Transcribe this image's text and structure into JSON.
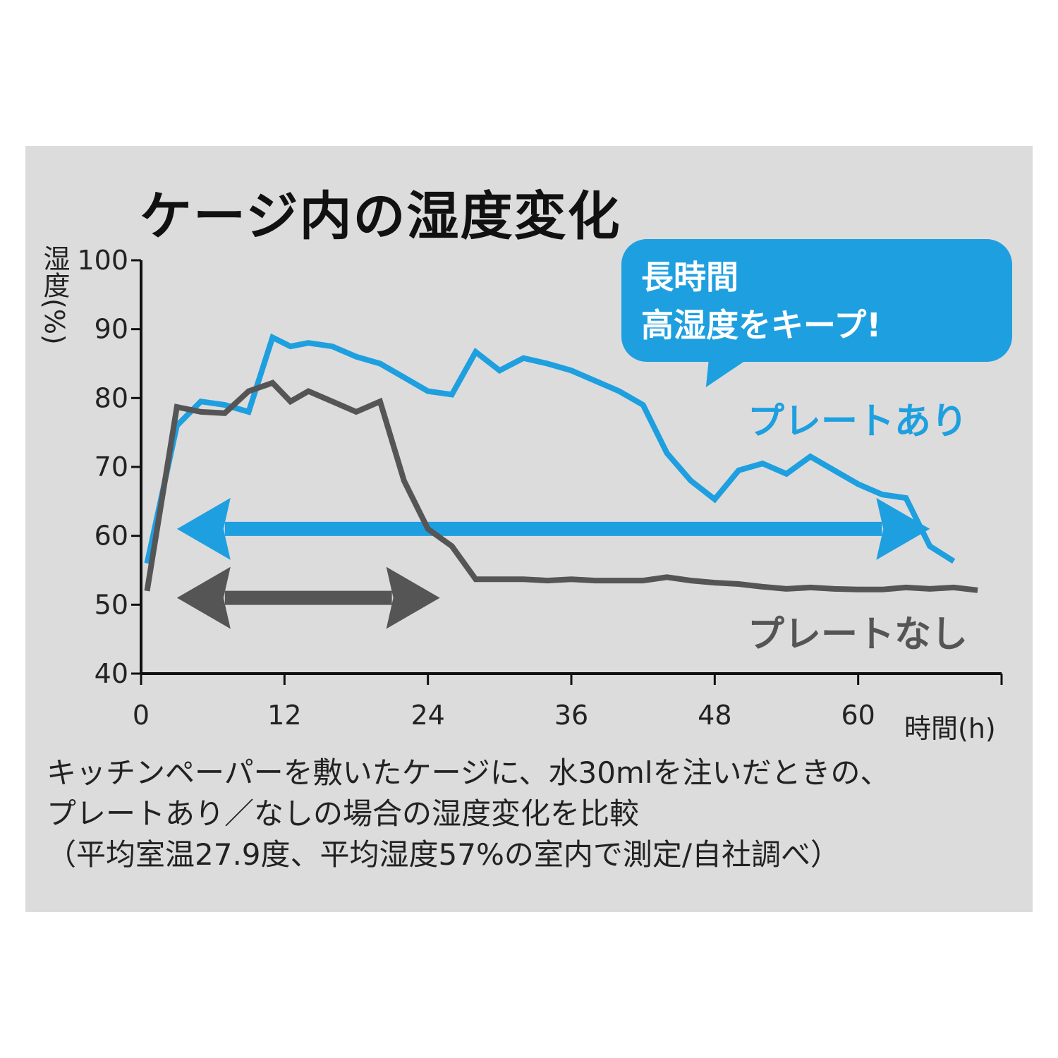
{
  "title": "ケージ内の湿度変化",
  "callout": {
    "line1": "長時間",
    "line2": "高湿度をキープ!"
  },
  "caption": {
    "line1": "キッチンペーパーを敷いたケージに、水30mlを注いだときの、",
    "line2": "プレートあり／なしの場合の湿度変化を比較",
    "line3": "（平均室温27.9度、平均湿度57%の室内で測定/自社調べ）"
  },
  "colors": {
    "with_plate": "#1e9fe0",
    "without_plate": "#555555",
    "panel": "#dcdcdc"
  },
  "chart_data": {
    "type": "line",
    "title": "ケージ内の湿度変化",
    "xlabel": "時間(h)",
    "ylabel": "湿度(%)",
    "xlim": [
      0,
      72
    ],
    "ylim": [
      40,
      100
    ],
    "xticks": [
      0,
      12,
      24,
      36,
      48,
      60
    ],
    "yticks": [
      40,
      50,
      60,
      70,
      80,
      90,
      100
    ],
    "grid": false,
    "series": [
      {
        "name": "プレートあり",
        "color": "#1e9fe0",
        "x": [
          0.5,
          3,
          5,
          7,
          9,
          11,
          12.5,
          14,
          16,
          18,
          20,
          22,
          24,
          26,
          28,
          30,
          32,
          34,
          36,
          38,
          40,
          42,
          44,
          46,
          48,
          50,
          52,
          54,
          56,
          58,
          60,
          62,
          64,
          66,
          68,
          70,
          72
        ],
        "y": [
          56,
          76,
          79.5,
          79,
          78,
          88.8,
          87.5,
          88,
          87.5,
          86,
          85,
          83,
          81,
          80.5,
          86.7,
          84,
          85.8,
          85,
          84,
          82.5,
          81,
          79,
          72,
          68,
          65.3,
          69.5,
          70.5,
          69,
          71.5,
          69.5,
          67.5,
          66,
          65.5,
          58.5,
          56.3,
          null,
          null
        ]
      },
      {
        "name": "プレートなし",
        "color": "#555555",
        "x": [
          0.5,
          3,
          5,
          7,
          9,
          11,
          12.5,
          14,
          16,
          18,
          20,
          22,
          24,
          26,
          28,
          30,
          32,
          34,
          36,
          38,
          40,
          42,
          44,
          46,
          48,
          50,
          52,
          54,
          56,
          58,
          60,
          62,
          64,
          66,
          68,
          70,
          72
        ],
        "y": [
          52,
          78.7,
          78,
          77.8,
          81,
          82.2,
          79.5,
          81,
          79.5,
          78,
          79.5,
          68,
          61,
          58.5,
          53.7,
          53.7,
          53.7,
          53.5,
          53.7,
          53.5,
          53.5,
          53.5,
          54,
          53.5,
          53.2,
          53,
          52.6,
          52.3,
          52.5,
          52.3,
          52.2,
          52.2,
          52.5,
          52.3,
          52.5,
          52.1,
          null
        ]
      }
    ],
    "annotations": [
      {
        "name": "プレートあり",
        "range_x": [
          3,
          66
        ],
        "y": 61
      },
      {
        "name": "プレートなし",
        "range_x": [
          3,
          25
        ],
        "y": 51
      }
    ]
  }
}
